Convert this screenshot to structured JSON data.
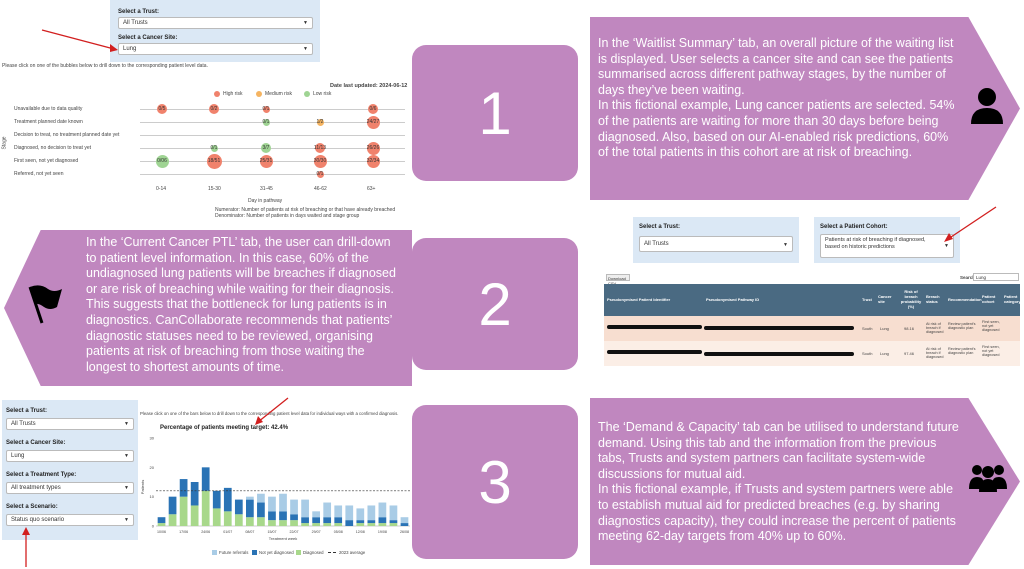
{
  "panel1": {
    "trust_label": "Select a Trust:",
    "trust_value": "All Trusts",
    "site_label": "Select a Cancer Site:",
    "site_value": "Lung",
    "instruction": "Please click on one of the bubbles below to drill down to the corresponding patient level data.",
    "date_updated": "Date last updated: 2024-06-12",
    "legend": [
      "High risk",
      "Medium risk",
      "Low risk"
    ],
    "legend_colors": [
      "#f0826c",
      "#f5b461",
      "#9fd493"
    ],
    "stages": [
      "Unavailable due to data quality",
      "Treatment planned date known",
      "Decision to treat, no treatment planned date yet",
      "Diagnosed, no decision to treat yet",
      "First seen, not yet diagnosed",
      "Referred, not yet seen"
    ],
    "y_axis_label": "Stage",
    "x_ticks": [
      "0-14",
      "15-30",
      "31-45",
      "46-62",
      "63+"
    ],
    "x_axis_label": "Day in pathway",
    "footnote_1": "Numerator: Number of patients at risk of breaching or that have already breached",
    "footnote_2": "Denominator: Number of patients in days waited and stage group",
    "bubbles": [
      {
        "row": 0,
        "col": 0,
        "label": "0/5",
        "risk": "high",
        "size": 1
      },
      {
        "row": 0,
        "col": 1,
        "label": "0/2",
        "risk": "high",
        "size": 1
      },
      {
        "row": 0,
        "col": 2,
        "label": "0/1",
        "risk": "high",
        "size": 0
      },
      {
        "row": 0,
        "col": 4,
        "label": "0/6",
        "risk": "high",
        "size": 1
      },
      {
        "row": 1,
        "col": 2,
        "label": "0/1",
        "risk": "low",
        "size": 0
      },
      {
        "row": 1,
        "col": 3,
        "label": "1/2",
        "risk": "medium",
        "size": 0
      },
      {
        "row": 1,
        "col": 4,
        "label": "24/27",
        "risk": "high",
        "size": 2
      },
      {
        "row": 3,
        "col": 1,
        "label": "0/1",
        "risk": "low",
        "size": 0
      },
      {
        "row": 3,
        "col": 2,
        "label": "3/7",
        "risk": "low",
        "size": 1
      },
      {
        "row": 3,
        "col": 3,
        "label": "11/13",
        "risk": "high",
        "size": 1
      },
      {
        "row": 3,
        "col": 4,
        "label": "26/26",
        "risk": "high",
        "size": 2
      },
      {
        "row": 4,
        "col": 0,
        "label": "0/06",
        "risk": "low",
        "size": 2
      },
      {
        "row": 4,
        "col": 1,
        "label": "18/51",
        "risk": "high",
        "size": 3
      },
      {
        "row": 4,
        "col": 2,
        "label": "25/31",
        "risk": "high",
        "size": 2
      },
      {
        "row": 4,
        "col": 3,
        "label": "30/30",
        "risk": "high",
        "size": 2
      },
      {
        "row": 4,
        "col": 4,
        "label": "32/34",
        "risk": "high",
        "size": 2
      },
      {
        "row": 5,
        "col": 3,
        "label": "0/1",
        "risk": "high",
        "size": 0
      }
    ]
  },
  "step_numbers": [
    "1",
    "2",
    "3"
  ],
  "callout1": [
    "In the ‘Waitlist Summary’ tab, an overall picture of the waiting list is displayed. User selects a cancer site and can see the patients summarised across different pathway stages, by the number of days they’ve been waiting.",
    "In this fictional example, Lung cancer patients are selected. 54% of the patients are waiting for more than 30 days before being diagnosed. Also, based on our AI-enabled risk predictions, 60% of the total patients in this cohort are at risk of breaching."
  ],
  "callout2": [
    "In the ‘Current Cancer PTL’ tab, the user can drill-down to patient level information. In this case, 60% of the undiagnosed lung patients will be breaches if diagnosed or are risk of breaching while waiting for their diagnosis. This suggests that the bottleneck for lung patients is in diagnostics. CanCollaborate recommends that patients’ diagnostic statuses need to be reviewed, organising patients at risk of breaching from those waiting the longest to shortest amounts of time."
  ],
  "callout3": [
    "The ‘Demand & Capacity’ tab can be utilised to understand future demand. Using this tab and the information from the previous tabs, Trusts and system partners can facilitate system-wide discussions for mutual aid.",
    "In this fictional example, if Trusts and system partners were able to establish mutual aid for predicted breaches (e.g. by sharing diagnostics capacity), they could increase the percent of patients meeting 62-day targets from 40% up to 60%."
  ],
  "panel2": {
    "trust_label": "Select a Trust:",
    "trust_value": "All Trusts",
    "cohort_label": "Select a Patient Cohort:",
    "cohort_value": "Patients at risk of breaching if diagnosed, based on historic predictions",
    "download_label": "Download CSV",
    "search_label": "Search:",
    "search_value": "Lung",
    "columns": [
      "Pseudonymised Patient Identifier",
      "Pseudonymised Pathway ID",
      "Trust",
      "Cancer site",
      "Risk of breach probability (%)",
      "Breach status",
      "Recommendation",
      "Patient cohort",
      "Patient category"
    ],
    "rows": [
      {
        "trust": "South",
        "site": "Lung",
        "prob": "98.16",
        "status": "At risk of breach if diagnosed",
        "rec": "Review patient's diagnostic plan",
        "cohort": "First seen, not yet diagnosed"
      },
      {
        "trust": "South",
        "site": "Lung",
        "prob": "97.46",
        "status": "At risk of breach if diagnosed",
        "rec": "Review patient's diagnostic plan",
        "cohort": "First seen, not yet diagnosed"
      }
    ]
  },
  "panel3": {
    "trust_label": "Select a Trust:",
    "trust_value": "All Trusts",
    "site_label": "Select a Cancer Site:",
    "site_value": "Lung",
    "treatment_label": "Select a Treatment Type:",
    "treatment_value": "All treatment types",
    "scenario_label": "Select a Scenario:",
    "scenario_value": "Status quo scenario",
    "instruction": "Please click on one of the bars below to drill down to the corresponding patient level data for individual ways with a confirmed diagnosis.",
    "chart_title": "Percentage of patients meeting target: 42.4%",
    "x_axis_label": "Treatment week",
    "y_axis_label": "Patients",
    "legend": [
      "Future referrals",
      "Not yet diagnosed",
      "Diagnosed",
      "2023 average"
    ]
  },
  "chart_data": {
    "type": "bar",
    "title": "Percentage of patients meeting target: 42.4%",
    "xlabel": "Treatment week",
    "ylabel": "Patients",
    "categories": [
      "10/06",
      "",
      "17/06",
      "",
      "24/06",
      "",
      "01/07",
      "",
      "08/07",
      "",
      "15/07",
      "",
      "22/07",
      "",
      "29/07",
      "",
      "05/08",
      "",
      "12/08",
      "",
      "19/08",
      "",
      "26/08"
    ],
    "series": [
      {
        "name": "Diagnosed",
        "values": [
          1,
          4,
          10,
          7,
          12,
          6,
          5,
          4,
          3,
          3,
          2,
          2,
          2,
          1,
          1,
          1,
          1,
          0,
          1,
          1,
          1,
          1,
          0
        ]
      },
      {
        "name": "Not yet diagnosed",
        "values": [
          2,
          6,
          6,
          8,
          8,
          6,
          8,
          5,
          6,
          5,
          3,
          3,
          2,
          2,
          2,
          2,
          2,
          2,
          1,
          1,
          2,
          1,
          1
        ]
      },
      {
        "name": "Future referrals",
        "values": [
          0,
          0,
          0,
          0,
          0,
          0,
          0,
          0,
          1,
          3,
          5,
          6,
          5,
          6,
          2,
          5,
          4,
          5,
          4,
          5,
          5,
          5,
          2
        ]
      }
    ],
    "average": 12,
    "ylim": [
      0,
      30
    ],
    "colors": {
      "Future referrals": "#a9cce6",
      "Not yet diagnosed": "#2a73b5",
      "Diagnosed": "#a8d88b",
      "2023 average": "#333333"
    }
  }
}
